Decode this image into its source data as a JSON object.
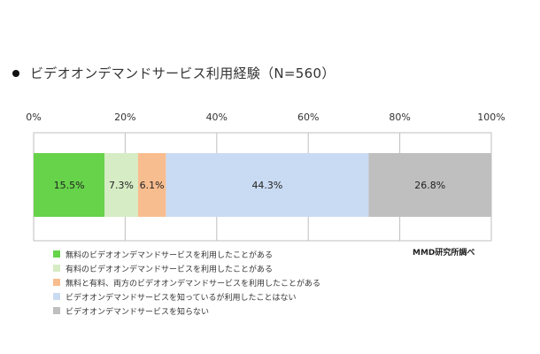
{
  "title": "ビデオオンデマンドサービス利用経験（N=560）",
  "source": "MMD研究所調べ",
  "chart_data": {
    "type": "bar",
    "orientation": "horizontal-stacked-100",
    "xlim": [
      0,
      100
    ],
    "ticks": [
      "0%",
      "20%",
      "40%",
      "60%",
      "80%",
      "100%"
    ],
    "grid": true,
    "legend_position": "bottom-left",
    "series": [
      {
        "name": "無料のビデオオンデマンドサービスを利用したことがある",
        "value": 15.5,
        "label": "15.5%",
        "color": "#66d34a"
      },
      {
        "name": "有料のビデオオンデマンドサービスを利用したことがある",
        "value": 7.3,
        "label": "7.3%",
        "color": "#d6ecc4"
      },
      {
        "name": "無料と有料、両方のビデオオンデマンドサービスを利用したことがある",
        "value": 6.1,
        "label": "6.1%",
        "color": "#f8bd8f"
      },
      {
        "name": "ビデオオンデマンドサービスを知っているが利用したことはない",
        "value": 44.3,
        "label": "44.3%",
        "color": "#c9dbf2"
      },
      {
        "name": "ビデオオンデマンドサービスを知らない",
        "value": 26.8,
        "label": "26.8%",
        "color": "#bfbfbf"
      }
    ]
  }
}
